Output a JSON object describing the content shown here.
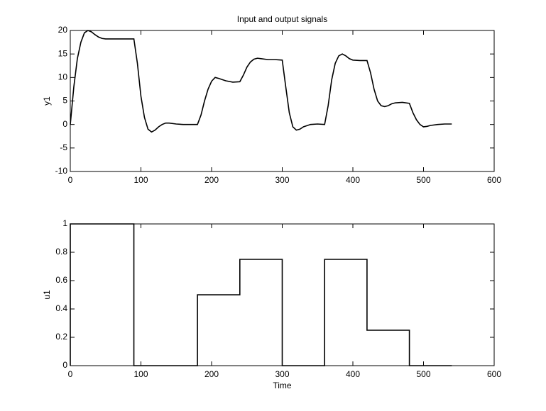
{
  "chart_data": [
    {
      "type": "line",
      "title": "Input and output signals",
      "y_label": "y1",
      "color": "#000000",
      "x": [
        0,
        5,
        10,
        15,
        20,
        25,
        30,
        35,
        40,
        45,
        50,
        60,
        70,
        80,
        90,
        95,
        100,
        105,
        110,
        115,
        120,
        125,
        130,
        135,
        140,
        150,
        160,
        170,
        180,
        185,
        190,
        195,
        200,
        205,
        210,
        220,
        230,
        240,
        245,
        250,
        255,
        260,
        265,
        270,
        280,
        290,
        300,
        305,
        310,
        315,
        320,
        325,
        330,
        340,
        350,
        360,
        365,
        370,
        375,
        380,
        385,
        390,
        395,
        400,
        410,
        420,
        425,
        430,
        435,
        440,
        445,
        450,
        455,
        460,
        470,
        480,
        485,
        490,
        495,
        500,
        505,
        510,
        520,
        530,
        540
      ],
      "values": [
        0,
        8,
        14,
        17.5,
        19.5,
        20,
        19.7,
        19.1,
        18.6,
        18.3,
        18.2,
        18.2,
        18.2,
        18.2,
        18.2,
        13,
        6,
        1.5,
        -1,
        -1.6,
        -1.2,
        -0.5,
        0,
        0.3,
        0.3,
        0.1,
        0,
        0,
        0,
        2,
        5,
        7.5,
        9.2,
        10,
        9.8,
        9.3,
        9,
        9.1,
        10.5,
        12.2,
        13.3,
        13.9,
        14.1,
        14,
        13.8,
        13.8,
        13.7,
        8,
        2.5,
        -0.5,
        -1.2,
        -1,
        -0.5,
        0,
        0.1,
        0,
        4,
        9.5,
        13,
        14.6,
        15,
        14.6,
        14,
        13.7,
        13.6,
        13.6,
        11,
        7.5,
        5,
        4,
        3.8,
        4,
        4.4,
        4.6,
        4.7,
        4.5,
        2.5,
        1,
        0,
        -0.5,
        -0.4,
        -0.2,
        0,
        0.1,
        0.1
      ],
      "xlim": [
        0,
        600
      ],
      "xticks": [
        0,
        100,
        200,
        300,
        400,
        500,
        600
      ],
      "ylim": [
        -10,
        20
      ],
      "yticks": [
        -10,
        -5,
        0,
        5,
        10,
        15,
        20
      ]
    },
    {
      "type": "line",
      "y_label": "u1",
      "x_label": "Time",
      "color": "#000000",
      "x": [
        0,
        0,
        90,
        90,
        180,
        180,
        240,
        240,
        300,
        300,
        360,
        360,
        420,
        420,
        480,
        480,
        540
      ],
      "values": [
        0,
        1,
        1,
        0,
        0,
        0.5,
        0.5,
        0.75,
        0.75,
        0,
        0,
        0.75,
        0.75,
        0.25,
        0.25,
        0,
        0
      ],
      "xlim": [
        0,
        600
      ],
      "xticks": [
        0,
        100,
        200,
        300,
        400,
        500,
        600
      ],
      "ylim": [
        0,
        1
      ],
      "yticks": [
        0,
        0.2,
        0.4,
        0.6,
        0.8,
        1
      ]
    }
  ]
}
